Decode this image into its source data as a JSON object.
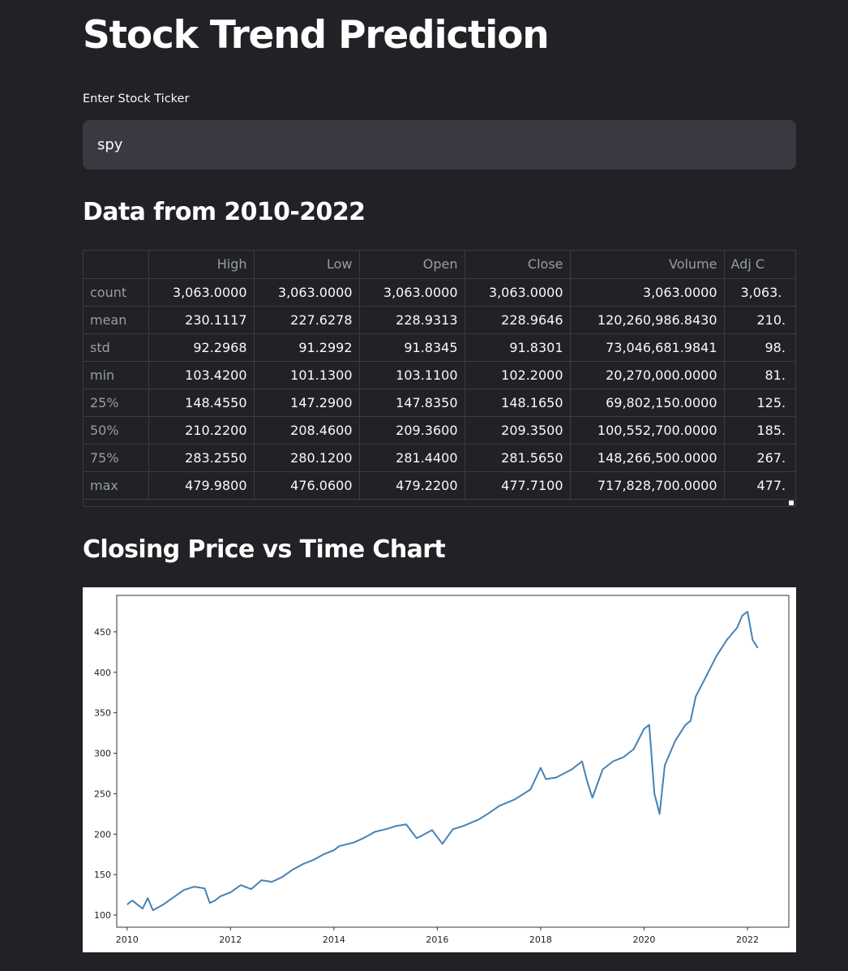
{
  "title": "Stock Trend Prediction",
  "ticker_input": {
    "label": "Enter Stock Ticker",
    "value": "spy"
  },
  "data_section": {
    "title": "Data from 2010-2022",
    "columns": [
      "",
      "High",
      "Low",
      "Open",
      "Close",
      "Volume",
      "Adj C"
    ],
    "rows": [
      [
        "count",
        "3,063.0000",
        "3,063.0000",
        "3,063.0000",
        "3,063.0000",
        "3,063.0000",
        "3,063."
      ],
      [
        "mean",
        "230.1117",
        "227.6278",
        "228.9313",
        "228.9646",
        "120,260,986.8430",
        "210."
      ],
      [
        "std",
        "92.2968",
        "91.2992",
        "91.8345",
        "91.8301",
        "73,046,681.9841",
        "98."
      ],
      [
        "min",
        "103.4200",
        "101.1300",
        "103.1100",
        "102.2000",
        "20,270,000.0000",
        "81."
      ],
      [
        "25%",
        "148.4550",
        "147.2900",
        "147.8350",
        "148.1650",
        "69,802,150.0000",
        "125."
      ],
      [
        "50%",
        "210.2200",
        "208.4600",
        "209.3600",
        "209.3500",
        "100,552,700.0000",
        "185."
      ],
      [
        "75%",
        "283.2550",
        "280.1200",
        "281.4400",
        "281.5650",
        "148,266,500.0000",
        "267."
      ],
      [
        "max",
        "479.9800",
        "476.0600",
        "479.2200",
        "477.7100",
        "717,828,700.0000",
        "477."
      ]
    ]
  },
  "chart_section": {
    "title": "Closing Price vs Time Chart"
  },
  "chart_data": {
    "type": "line",
    "title": "",
    "xlabel": "",
    "ylabel": "",
    "xlim": [
      2009.8,
      2022.8
    ],
    "ylim": [
      85,
      495
    ],
    "x_ticks": [
      "2010",
      "2012",
      "2014",
      "2016",
      "2018",
      "2020",
      "2022"
    ],
    "y_ticks": [
      "100",
      "150",
      "200",
      "250",
      "300",
      "350",
      "400",
      "450"
    ],
    "grid": false,
    "line_color": "#4682b4",
    "series": [
      {
        "x": [
          2010.0,
          2010.1,
          2010.3,
          2010.4,
          2010.5,
          2010.7,
          2010.9,
          2011.1,
          2011.3,
          2011.5,
          2011.6,
          2011.7,
          2011.8,
          2012.0,
          2012.2,
          2012.4,
          2012.6,
          2012.8,
          2013.0,
          2013.2,
          2013.4,
          2013.6,
          2013.8,
          2014.0,
          2014.1,
          2014.4,
          2014.6,
          2014.8,
          2015.0,
          2015.2,
          2015.4,
          2015.6,
          2015.7,
          2015.9,
          2016.1,
          2016.3,
          2016.5,
          2016.8,
          2017.0,
          2017.2,
          2017.5,
          2017.8,
          2018.0,
          2018.1,
          2018.3,
          2018.6,
          2018.8,
          2018.9,
          2019.0,
          2019.2,
          2019.4,
          2019.6,
          2019.8,
          2020.0,
          2020.1,
          2020.2,
          2020.3,
          2020.4,
          2020.6,
          2020.8,
          2020.9,
          2021.0,
          2021.2,
          2021.4,
          2021.6,
          2021.8,
          2021.9,
          2022.0,
          2022.1,
          2022.2
        ],
        "y": [
          113,
          118,
          108,
          121,
          106,
          113,
          122,
          131,
          135,
          133,
          115,
          118,
          123,
          128,
          137,
          132,
          143,
          141,
          147,
          156,
          163,
          168,
          175,
          180,
          185,
          190,
          196,
          203,
          206,
          210,
          212,
          195,
          198,
          205,
          188,
          206,
          210,
          218,
          226,
          235,
          243,
          255,
          282,
          268,
          270,
          280,
          290,
          265,
          245,
          280,
          290,
          295,
          305,
          330,
          335,
          250,
          225,
          285,
          315,
          335,
          340,
          370,
          395,
          420,
          440,
          455,
          470,
          475,
          440,
          430
        ]
      }
    ]
  }
}
